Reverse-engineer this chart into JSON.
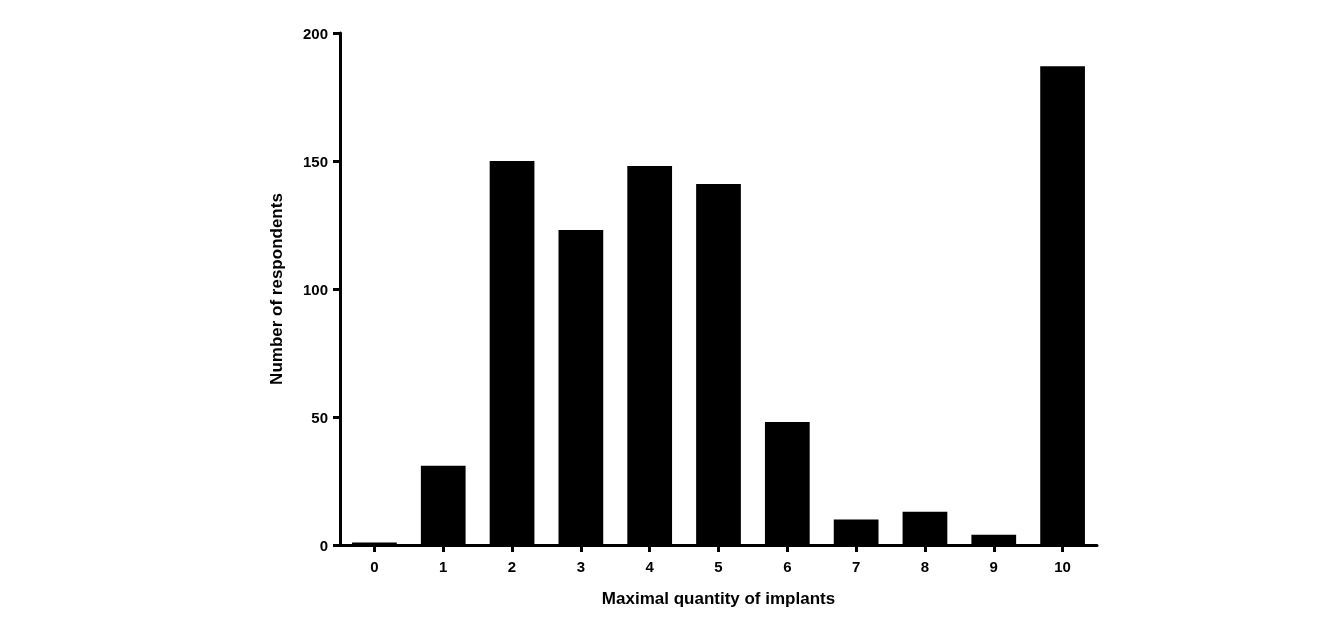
{
  "chart_data": {
    "type": "bar",
    "xlabel": "Maximal quantity of implants",
    "ylabel": "Number of respondents",
    "categories": [
      "0",
      "1",
      "2",
      "3",
      "4",
      "5",
      "6",
      "7",
      "8",
      "9",
      "10"
    ],
    "values": [
      1,
      31,
      150,
      123,
      148,
      141,
      48,
      10,
      13,
      4,
      187
    ],
    "color": "#000000",
    "ylim": [
      0,
      200
    ],
    "yticks": [
      0,
      50,
      100,
      150,
      200
    ],
    "grid": false
  }
}
